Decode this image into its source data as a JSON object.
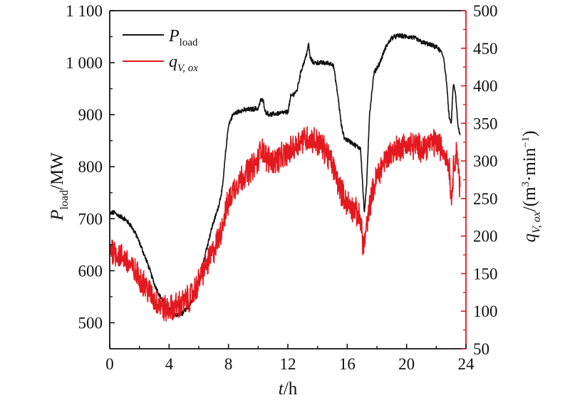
{
  "chart_data": {
    "type": "line",
    "x_axis": {
      "label_italic": "t",
      "label_rest": "/h",
      "range": [
        0,
        24
      ],
      "ticks": [
        0,
        4,
        8,
        12,
        16,
        20,
        24
      ],
      "tick_labels": [
        "0",
        "4",
        "8",
        "12",
        "16",
        "20",
        "24"
      ]
    },
    "y_axis_left": {
      "label_main": "P",
      "label_sub": "load",
      "label_rest": "/MW",
      "range": [
        450,
        1100
      ],
      "ticks": [
        500,
        600,
        700,
        800,
        900,
        1000,
        1100
      ],
      "tick_labels": [
        "500",
        "600",
        "700",
        "800",
        "900",
        "1 000",
        "1 100"
      ]
    },
    "y_axis_right": {
      "label_main": "q",
      "label_sub": "V, ox",
      "label_rest": "/(m",
      "label_sup": "3",
      "label_mid": "·min",
      "label_sup2": "−1",
      "label_end": ")",
      "range": [
        50,
        500
      ],
      "ticks": [
        50,
        100,
        150,
        200,
        250,
        300,
        350,
        400,
        450,
        500
      ],
      "tick_labels": [
        "50",
        "100",
        "150",
        "200",
        "250",
        "300",
        "350",
        "400",
        "450",
        "500"
      ],
      "color": "#e3191f"
    },
    "legend": {
      "placement": "top-left",
      "entries": [
        {
          "main": "P",
          "sub": "load",
          "color": "#111111"
        },
        {
          "main": "q",
          "sub": "V, ox",
          "color": "#e3191f"
        }
      ]
    },
    "grid": false,
    "series": [
      {
        "axis": "left",
        "color": "#111111",
        "noise": 4,
        "x": [
          0,
          0.3,
          0.6,
          1.0,
          1.4,
          1.8,
          2.2,
          2.6,
          3.0,
          3.4,
          3.8,
          4.1,
          4.5,
          4.9,
          5.3,
          5.7,
          6.1,
          6.5,
          6.9,
          7.3,
          7.6,
          7.8,
          8.0,
          8.3,
          8.8,
          9.4,
          10.0,
          10.2,
          10.35,
          10.5,
          10.8,
          11.4,
          12.0,
          12.2,
          12.6,
          12.9,
          13.2,
          13.4,
          13.5,
          13.7,
          14.2,
          15.0,
          15.1,
          15.4,
          15.6,
          15.8,
          16.2,
          16.6,
          16.9,
          17.05,
          17.15,
          17.3,
          17.5,
          17.8,
          18.2,
          18.6,
          19.0,
          19.5,
          20.0,
          20.5,
          21.0,
          21.5,
          22.0,
          22.3,
          22.5,
          22.7,
          22.85,
          23.0,
          23.15,
          23.3,
          23.45,
          23.6
        ],
        "y": [
          710,
          712,
          706,
          700,
          688,
          668,
          640,
          610,
          575,
          550,
          535,
          522,
          514,
          518,
          530,
          550,
          590,
          640,
          685,
          720,
          760,
          825,
          880,
          900,
          908,
          910,
          912,
          930,
          925,
          905,
          900,
          903,
          905,
          935,
          945,
          985,
          1010,
          1035,
          1010,
          1000,
          1000,
          998,
          990,
          930,
          880,
          855,
          848,
          840,
          835,
          760,
          712,
          760,
          900,
          980,
          1000,
          1030,
          1048,
          1052,
          1050,
          1048,
          1040,
          1035,
          1030,
          1022,
          1010,
          960,
          900,
          880,
          960,
          940,
          880,
          860
        ]
      },
      {
        "axis": "right",
        "color": "#e3191f",
        "noise": 16,
        "x": [
          0,
          0.3,
          0.6,
          1.0,
          1.4,
          1.8,
          2.2,
          2.6,
          3.0,
          3.4,
          3.8,
          4.2,
          4.6,
          5.0,
          5.4,
          5.8,
          6.2,
          6.6,
          7.0,
          7.4,
          7.7,
          8.0,
          8.4,
          9.0,
          9.5,
          10.0,
          10.2,
          10.5,
          11.0,
          11.6,
          12.0,
          12.5,
          13.0,
          13.5,
          14.0,
          14.5,
          15.0,
          15.4,
          15.8,
          16.2,
          16.6,
          16.9,
          17.1,
          17.3,
          17.6,
          18.0,
          18.5,
          19.0,
          19.5,
          20.0,
          20.5,
          21.0,
          21.5,
          22.0,
          22.3,
          22.6,
          22.9,
          23.0,
          23.2,
          23.4,
          23.6
        ],
        "y": [
          185,
          180,
          175,
          170,
          160,
          150,
          140,
          128,
          115,
          108,
          102,
          104,
          108,
          112,
          118,
          130,
          150,
          165,
          180,
          200,
          225,
          245,
          265,
          280,
          290,
          300,
          320,
          305,
          300,
          305,
          310,
          320,
          330,
          330,
          325,
          315,
          295,
          270,
          250,
          240,
          232,
          220,
          185,
          210,
          250,
          280,
          300,
          312,
          318,
          322,
          320,
          318,
          322,
          325,
          318,
          310,
          290,
          245,
          300,
          315,
          260
        ]
      }
    ]
  }
}
